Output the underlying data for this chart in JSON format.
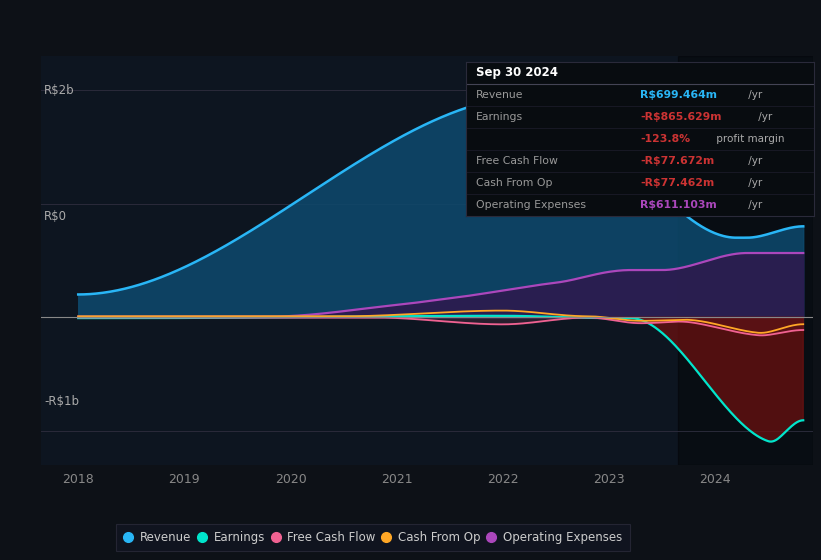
{
  "bg_color": "#0d1117",
  "plot_bg_color": "#0d1520",
  "ylabel_top": "R$2b",
  "ylabel_zero": "R$0",
  "ylabel_bottom": "-R$1b",
  "colors": {
    "revenue": "#29b6f6",
    "earnings": "#00e5cc",
    "free_cash_flow": "#f06292",
    "cash_from_op": "#ffa726",
    "operating_expenses": "#ab47bc"
  },
  "legend_items": [
    {
      "label": "Revenue",
      "color": "#29b6f6"
    },
    {
      "label": "Earnings",
      "color": "#00e5cc"
    },
    {
      "label": "Free Cash Flow",
      "color": "#f06292"
    },
    {
      "label": "Cash From Op",
      "color": "#ffa726"
    },
    {
      "label": "Operating Expenses",
      "color": "#ab47bc"
    }
  ],
  "table_title": "Sep 30 2024",
  "table_rows": [
    {
      "label": "Revenue",
      "value": "R$699.464m",
      "suffix": " /yr",
      "value_color": "#29b6f6",
      "suffix_color": "#aaaaaa"
    },
    {
      "label": "Earnings",
      "value": "-R$865.629m",
      "suffix": " /yr",
      "value_color": "#cc3333",
      "suffix_color": "#aaaaaa"
    },
    {
      "label": "",
      "value": "-123.8%",
      "suffix": " profit margin",
      "value_color": "#cc3333",
      "suffix_color": "#aaaaaa"
    },
    {
      "label": "Free Cash Flow",
      "value": "-R$77.672m",
      "suffix": " /yr",
      "value_color": "#cc3333",
      "suffix_color": "#aaaaaa"
    },
    {
      "label": "Cash From Op",
      "value": "-R$77.462m",
      "suffix": " /yr",
      "value_color": "#cc3333",
      "suffix_color": "#aaaaaa"
    },
    {
      "label": "Operating Expenses",
      "value": "R$611.103m",
      "suffix": " /yr",
      "value_color": "#ab47bc",
      "suffix_color": "#aaaaaa"
    }
  ],
  "ylim": [
    -1300000000.0,
    2300000000.0
  ],
  "xlim": [
    2017.65,
    2024.92
  ]
}
